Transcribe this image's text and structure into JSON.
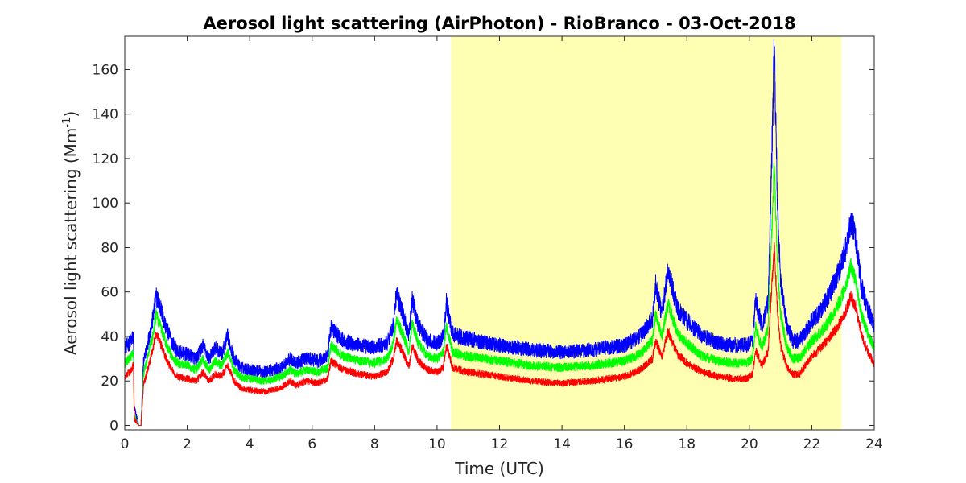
{
  "chart_data": {
    "type": "line",
    "title": "Aerosol light scattering (AirPhoton) - RioBranco - 03-Oct-2018",
    "xlabel": "Time (UTC)",
    "ylabel_main": "Aerosol light scattering (Mm",
    "ylabel_sup": "-1",
    "ylabel_close": ")",
    "xlim": [
      0,
      24
    ],
    "ylim": [
      -2,
      175
    ],
    "x_ticks": [
      0,
      2,
      4,
      6,
      8,
      10,
      12,
      14,
      16,
      18,
      20,
      22,
      24
    ],
    "y_ticks": [
      0,
      20,
      40,
      60,
      80,
      100,
      120,
      140,
      160
    ],
    "grid": false,
    "highlight_band": {
      "x_start": 10.45,
      "x_end": 22.95,
      "color": "#ffffb3"
    },
    "series": [
      {
        "color": "#0000ff",
        "noise": 3.5,
        "x": [
          0,
          0.15,
          0.28,
          0.3,
          0.45,
          0.5,
          0.52,
          0.6,
          0.75,
          0.9,
          1.0,
          1.1,
          1.3,
          1.5,
          1.7,
          2.0,
          2.3,
          2.5,
          2.7,
          2.9,
          3.1,
          3.3,
          3.5,
          3.7,
          4.0,
          4.5,
          5.0,
          5.3,
          5.5,
          5.8,
          6.2,
          6.5,
          6.6,
          7.0,
          7.5,
          8.0,
          8.4,
          8.6,
          8.7,
          8.9,
          9.1,
          9.2,
          9.4,
          9.7,
          10.0,
          10.2,
          10.3,
          10.5,
          11.0,
          12.0,
          13.0,
          14.0,
          15.0,
          16.0,
          16.5,
          16.9,
          17.0,
          17.2,
          17.4,
          17.7,
          18.0,
          18.5,
          19.0,
          19.5,
          19.9,
          20.1,
          20.2,
          20.4,
          20.6,
          20.7,
          20.8,
          20.9,
          21.0,
          21.2,
          21.4,
          21.6,
          21.8,
          22.0,
          22.3,
          22.6,
          22.9,
          23.1,
          23.25,
          23.4,
          23.6,
          23.8,
          24.0
        ],
        "y": [
          35,
          37,
          40,
          8,
          0,
          0,
          0,
          28,
          38,
          48,
          58,
          55,
          45,
          38,
          33,
          32,
          30,
          36,
          30,
          35,
          32,
          40,
          30,
          26,
          25,
          24,
          26,
          30,
          28,
          30,
          29,
          31,
          44,
          38,
          36,
          35,
          37,
          45,
          60,
          50,
          40,
          57,
          45,
          38,
          37,
          40,
          55,
          41,
          39,
          36,
          34,
          33,
          34,
          36,
          40,
          48,
          63,
          50,
          70,
          52,
          47,
          40,
          37,
          36,
          36,
          38,
          56,
          45,
          55,
          110,
          170,
          100,
          65,
          45,
          38,
          38,
          42,
          47,
          52,
          60,
          70,
          80,
          92,
          85,
          62,
          52,
          45
        ]
      },
      {
        "color": "#00ff00",
        "noise": 2.5,
        "x": [
          0,
          0.15,
          0.28,
          0.3,
          0.45,
          0.5,
          0.52,
          0.6,
          0.75,
          0.9,
          1.0,
          1.1,
          1.3,
          1.5,
          1.7,
          2.0,
          2.3,
          2.5,
          2.7,
          2.9,
          3.1,
          3.3,
          3.5,
          3.7,
          4.0,
          4.5,
          5.0,
          5.3,
          5.5,
          5.8,
          6.2,
          6.5,
          6.6,
          7.0,
          7.5,
          8.0,
          8.4,
          8.6,
          8.7,
          8.9,
          9.1,
          9.2,
          9.4,
          9.7,
          10.0,
          10.2,
          10.3,
          10.5,
          11.0,
          12.0,
          13.0,
          14.0,
          15.0,
          16.0,
          16.5,
          16.9,
          17.0,
          17.2,
          17.4,
          17.7,
          18.0,
          18.5,
          19.0,
          19.5,
          19.9,
          20.1,
          20.2,
          20.4,
          20.6,
          20.7,
          20.8,
          20.9,
          21.0,
          21.2,
          21.4,
          21.6,
          21.8,
          22.0,
          22.3,
          22.6,
          22.9,
          23.1,
          23.25,
          23.4,
          23.6,
          23.8,
          24.0
        ],
        "y": [
          28,
          30,
          33,
          5,
          0,
          0,
          0,
          23,
          32,
          40,
          50,
          46,
          38,
          31,
          28,
          27,
          25,
          30,
          25,
          29,
          27,
          33,
          25,
          22,
          21,
          20,
          22,
          25,
          23,
          25,
          24,
          26,
          36,
          31,
          29,
          28,
          30,
          37,
          48,
          41,
          33,
          46,
          37,
          31,
          30,
          33,
          45,
          33,
          31,
          29,
          27,
          26,
          27,
          29,
          32,
          38,
          50,
          40,
          55,
          41,
          37,
          31,
          29,
          28,
          28,
          30,
          44,
          35,
          43,
          80,
          118,
          72,
          50,
          35,
          30,
          30,
          34,
          38,
          42,
          48,
          56,
          63,
          72,
          66,
          49,
          41,
          35
        ]
      },
      {
        "color": "#ff0000",
        "noise": 2.2,
        "x": [
          0,
          0.15,
          0.28,
          0.3,
          0.45,
          0.5,
          0.52,
          0.6,
          0.75,
          0.9,
          1.0,
          1.1,
          1.3,
          1.5,
          1.7,
          2.0,
          2.3,
          2.5,
          2.7,
          2.9,
          3.1,
          3.3,
          3.5,
          3.7,
          4.0,
          4.5,
          5.0,
          5.3,
          5.5,
          5.8,
          6.2,
          6.5,
          6.6,
          7.0,
          7.5,
          8.0,
          8.4,
          8.6,
          8.7,
          8.9,
          9.1,
          9.2,
          9.4,
          9.7,
          10.0,
          10.2,
          10.3,
          10.5,
          11.0,
          12.0,
          13.0,
          14.0,
          15.0,
          16.0,
          16.5,
          16.9,
          17.0,
          17.2,
          17.4,
          17.7,
          18.0,
          18.5,
          19.0,
          19.5,
          19.9,
          20.1,
          20.2,
          20.4,
          20.6,
          20.7,
          20.8,
          20.9,
          21.0,
          21.2,
          21.4,
          21.6,
          21.8,
          22.0,
          22.3,
          22.6,
          22.9,
          23.1,
          23.25,
          23.4,
          23.6,
          23.8,
          24.0
        ],
        "y": [
          22,
          24,
          27,
          3,
          0,
          0,
          0,
          18,
          26,
          34,
          42,
          38,
          31,
          25,
          22,
          21,
          20,
          24,
          20,
          23,
          22,
          27,
          20,
          17,
          16,
          15,
          17,
          20,
          18,
          20,
          19,
          21,
          29,
          25,
          23,
          22,
          24,
          30,
          38,
          33,
          26,
          36,
          29,
          25,
          24,
          26,
          36,
          26,
          24,
          22,
          20,
          19,
          20,
          22,
          25,
          30,
          38,
          31,
          42,
          32,
          28,
          24,
          22,
          21,
          21,
          23,
          34,
          27,
          33,
          58,
          80,
          52,
          36,
          26,
          23,
          23,
          27,
          31,
          35,
          40,
          46,
          52,
          58,
          54,
          40,
          33,
          28
        ]
      }
    ]
  }
}
